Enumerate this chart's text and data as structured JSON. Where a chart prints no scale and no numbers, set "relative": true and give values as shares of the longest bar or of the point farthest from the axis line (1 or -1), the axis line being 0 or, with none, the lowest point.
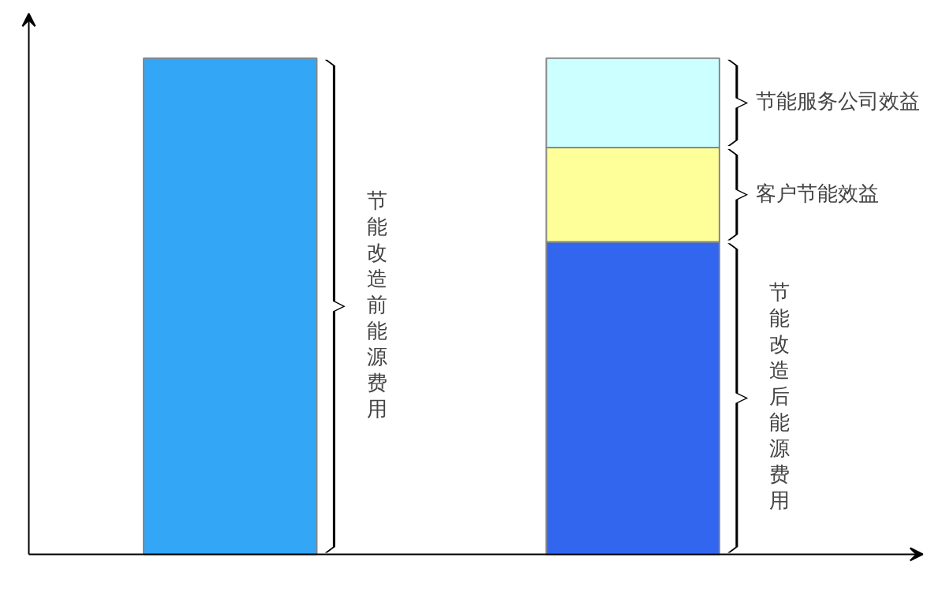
{
  "chart_data": {
    "type": "bar",
    "relative": true,
    "stacked": true,
    "categories": [
      null,
      null
    ],
    "series": [
      {
        "name": "节能改造前能源费用",
        "color": "#33a6f5",
        "values": [
          1,
          null
        ]
      },
      {
        "name": "节能改造后能源费用",
        "color": "#3366ee",
        "values": [
          null,
          0.63
        ]
      },
      {
        "name": "客户节能效益",
        "color": "#ffff99",
        "values": [
          null,
          0.19
        ]
      },
      {
        "name": "节能服务公司效益",
        "color": "#ccffff",
        "values": [
          null,
          0.18
        ]
      }
    ]
  }
}
